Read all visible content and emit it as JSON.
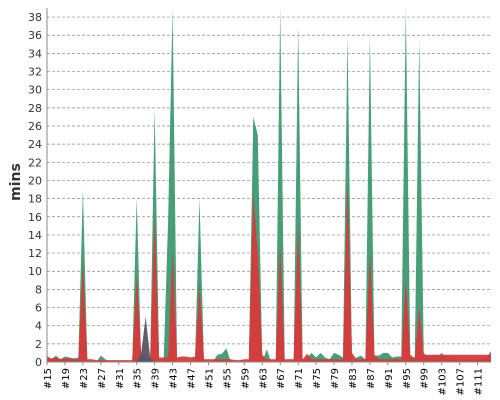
{
  "chart_data": {
    "type": "area",
    "title": "",
    "ylabel": "mins",
    "xlabel": "",
    "ylim": [
      0,
      39
    ],
    "yticks": [
      0,
      2,
      4,
      6,
      8,
      10,
      12,
      14,
      16,
      18,
      20,
      22,
      24,
      26,
      28,
      30,
      32,
      34,
      36,
      38
    ],
    "grid": true,
    "legend": "none",
    "xlim": [
      15,
      114
    ],
    "xtick_values": [
      15,
      19,
      23,
      27,
      31,
      35,
      39,
      43,
      47,
      51,
      55,
      59,
      63,
      67,
      71,
      75,
      79,
      83,
      87,
      91,
      95,
      99,
      103,
      107,
      111
    ],
    "xtick_labels": [
      "#15",
      "#19",
      "#23",
      "#27",
      "#31",
      "#35",
      "#39",
      "#43",
      "#47",
      "#51",
      "#55",
      "#59",
      "#63",
      "#67",
      "#71",
      "#75",
      "#79",
      "#83",
      "#87",
      "#91",
      "#95",
      "#99",
      "#103",
      "#107",
      "#111"
    ],
    "colors": {
      "success": "#3d9970",
      "failure": "#d9393a",
      "aborted": "#555566"
    },
    "series": [
      {
        "status": "success",
        "color": "#3d9970",
        "x": [
          15,
          16,
          17,
          18,
          19,
          20,
          21,
          22,
          23,
          24,
          25,
          26,
          27,
          28,
          29,
          30,
          31,
          32,
          33,
          34,
          35,
          36,
          37,
          38,
          39,
          40,
          41,
          42,
          43,
          44,
          45,
          46,
          47,
          48,
          49,
          50,
          51,
          52,
          53,
          54,
          55,
          56,
          57,
          58,
          59,
          60,
          61,
          62,
          63,
          64,
          65,
          66,
          67,
          68,
          69,
          70,
          71,
          72,
          73,
          74,
          75,
          76,
          77,
          78,
          79,
          80,
          81,
          82,
          83,
          84,
          85,
          86,
          87,
          88,
          89,
          90,
          91,
          92,
          93,
          94,
          95,
          96,
          97,
          98,
          99,
          100,
          101,
          102,
          103,
          104,
          105,
          106,
          107,
          108,
          109,
          110,
          111,
          112,
          113,
          114
        ],
        "values": [
          0.7,
          0.3,
          0.7,
          0.3,
          0.6,
          0.5,
          0.4,
          0.5,
          19.0,
          0,
          0,
          0,
          0.7,
          0.3,
          0,
          0,
          0,
          0,
          0,
          0,
          18.0,
          0,
          0,
          0,
          28.0,
          0,
          0,
          15.5,
          39.5,
          0,
          0,
          0,
          0,
          0,
          18.0,
          0,
          0,
          0,
          0.8,
          0.9,
          1.5,
          0,
          0,
          0,
          0,
          0,
          27.0,
          25.0,
          0,
          1.4,
          0,
          0,
          39.5,
          0,
          0,
          0,
          37.0,
          0,
          0.5,
          1.0,
          0.5,
          1.0,
          0.5,
          0.3,
          1.0,
          0.8,
          0.5,
          36.0,
          0,
          0.5,
          0.7,
          0.3,
          36.0,
          0.7,
          0.7,
          1.0,
          1.0,
          0.5,
          0.6,
          0.6,
          39.5,
          0.7,
          0.5,
          35.5,
          1.0,
          0.5,
          0.8,
          0.5,
          1.0,
          0.5,
          0.4,
          0.5,
          0.3,
          0.3,
          0.3,
          0.3,
          0.3,
          0.3,
          0.5,
          1.2
        ]
      },
      {
        "status": "failure",
        "color": "#d9393a",
        "x": [
          15,
          16,
          17,
          18,
          19,
          20,
          21,
          22,
          23,
          24,
          25,
          26,
          27,
          28,
          29,
          30,
          31,
          32,
          33,
          34,
          35,
          36,
          37,
          38,
          39,
          40,
          41,
          42,
          43,
          44,
          45,
          46,
          47,
          48,
          49,
          50,
          51,
          52,
          53,
          54,
          55,
          56,
          57,
          58,
          59,
          60,
          61,
          62,
          63,
          64,
          65,
          66,
          67,
          68,
          69,
          70,
          71,
          72,
          73,
          74,
          75,
          76,
          77,
          78,
          79,
          80,
          81,
          82,
          83,
          84,
          85,
          86,
          87,
          88,
          89,
          90,
          91,
          92,
          93,
          94,
          95,
          96,
          97,
          98,
          99,
          100,
          101,
          102,
          103,
          104,
          105,
          106,
          107,
          108,
          109,
          110,
          111,
          112,
          113,
          114
        ],
        "values": [
          0.5,
          0.4,
          0.5,
          0.3,
          0.4,
          0.4,
          0.3,
          0.3,
          11.0,
          0.3,
          0.3,
          0.2,
          0.2,
          0.2,
          0.2,
          0.2,
          0.2,
          0.2,
          0.2,
          0.2,
          9.5,
          1.0,
          0.3,
          0.3,
          16.0,
          0.5,
          0.5,
          0.5,
          12.0,
          0.5,
          0.6,
          0.6,
          0.5,
          0.6,
          8.5,
          0.3,
          0.3,
          0.3,
          0.3,
          0.3,
          0.3,
          0.3,
          0.2,
          0.2,
          0.3,
          0.3,
          18.5,
          12.0,
          0.8,
          0.3,
          0.3,
          0.3,
          13.0,
          0.3,
          0.3,
          0.3,
          15.0,
          0.3,
          0.9,
          0.3,
          0.3,
          0.3,
          0.3,
          0.3,
          0.3,
          0.3,
          0.3,
          20.0,
          1.0,
          0.3,
          0.3,
          0.3,
          12.0,
          0.8,
          0.3,
          0.3,
          0.3,
          0.3,
          0.3,
          0.3,
          9.0,
          0.8,
          0.3,
          6.0,
          0.8,
          0.8,
          0.8,
          0.8,
          0.8,
          0.8,
          0.8,
          0.8,
          0.8,
          0.8,
          0.8,
          0.8,
          0.8,
          0.8,
          0.8,
          0.8
        ]
      },
      {
        "status": "aborted",
        "color": "#555566",
        "x": [
          35,
          36,
          37,
          38,
          39
        ],
        "values": [
          0,
          1.0,
          5.0,
          0.5,
          0
        ]
      }
    ]
  }
}
